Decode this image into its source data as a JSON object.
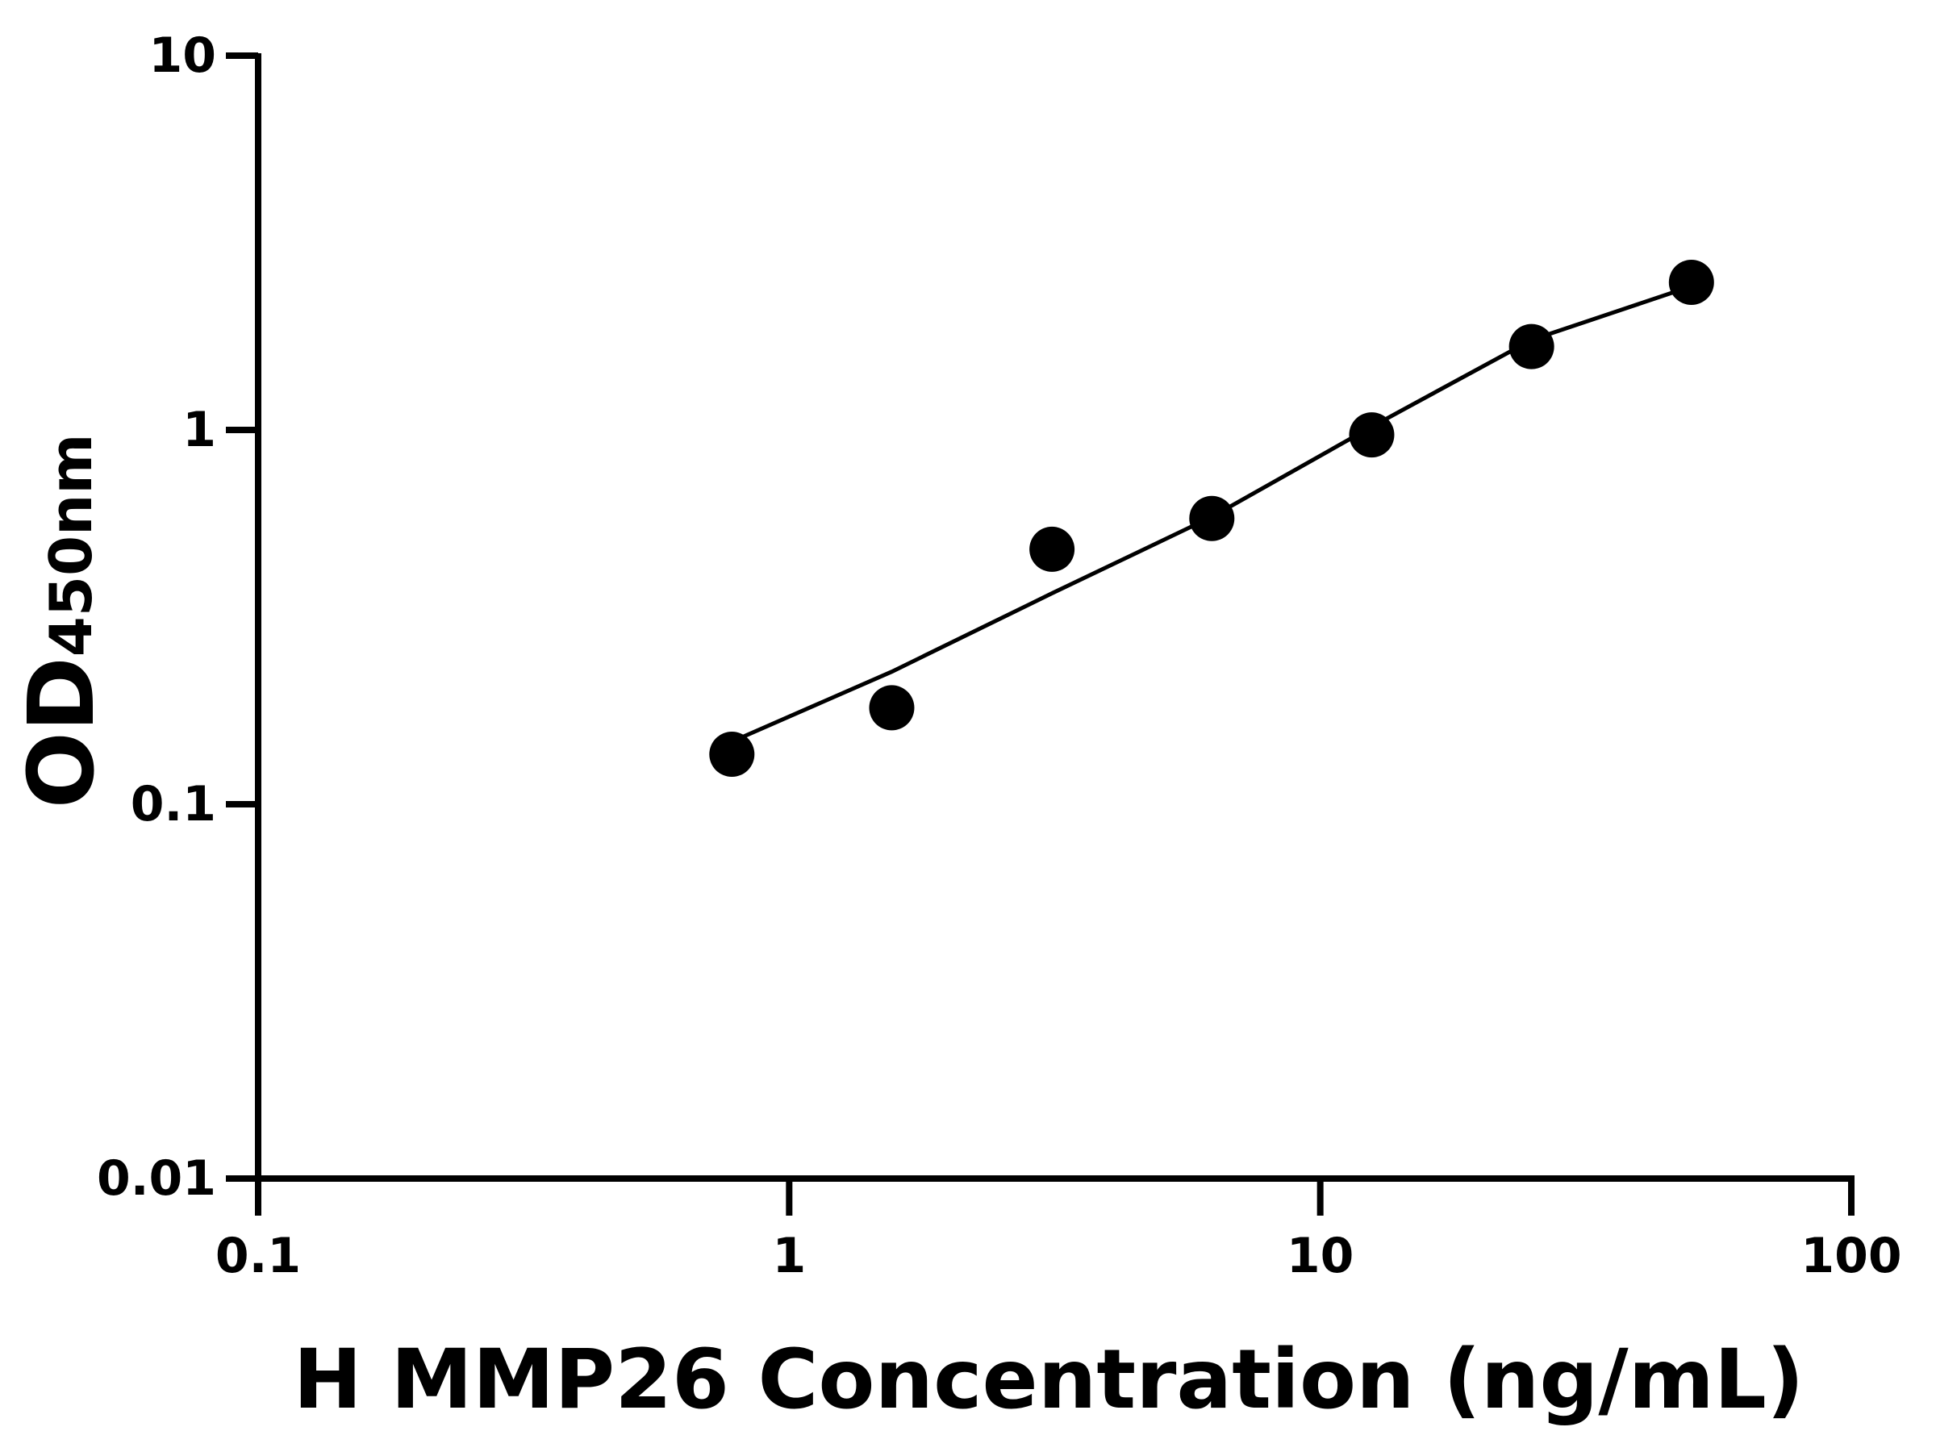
{
  "chart_data": {
    "type": "scatter",
    "x_label": "H MMP26 Concentration (ng/mL)",
    "y_label": "OD",
    "y_label_sub": "450nm",
    "x": [
      0.78,
      1.56,
      3.125,
      6.25,
      12.5,
      25,
      50
    ],
    "values": [
      0.136,
      0.181,
      0.48,
      0.58,
      0.97,
      1.67,
      2.48
    ],
    "color": "#000000",
    "fit": {
      "x": [
        0.78,
        1.56,
        3.125,
        6.25,
        12.5,
        25,
        50
      ],
      "values": [
        0.147,
        0.226,
        0.366,
        0.586,
        1.02,
        1.74,
        2.42
      ]
    },
    "xlim": [
      0.1,
      100
    ],
    "ylim": [
      0.01,
      10
    ],
    "xticks": [
      0.1,
      1,
      10,
      100
    ],
    "yticks": [
      0.01,
      0.1,
      1,
      10
    ],
    "xscale": "log",
    "yscale": "log"
  }
}
